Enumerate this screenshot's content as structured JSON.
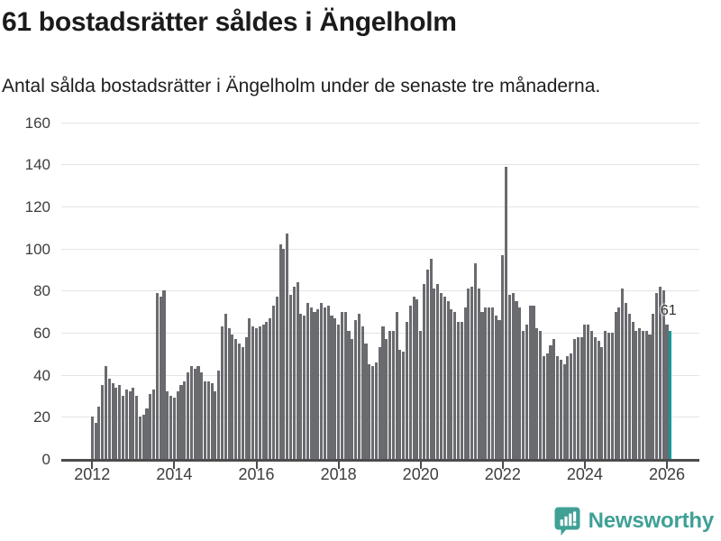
{
  "header": {
    "title": "61 bostadsrätter såldes i Ängelholm",
    "subtitle": "Antal sålda bostadsrätter i Ängelholm under de senaste tre månaderna."
  },
  "chart_data": {
    "type": "bar",
    "title": "61 bostadsrätter såldes i Ängelholm",
    "subtitle": "Antal sålda bostadsrätter i Ängelholm under de senaste tre månaderna.",
    "frequency": "monthly",
    "period_start": "2012-01",
    "period_end": "2026-02",
    "xlabel": "",
    "ylabel": "",
    "ylim": [
      0,
      160
    ],
    "yticks": [
      0,
      20,
      40,
      60,
      80,
      100,
      120,
      140,
      160
    ],
    "xticks": [
      2012,
      2014,
      2016,
      2018,
      2020,
      2022,
      2024,
      2026
    ],
    "grid": true,
    "values": [
      20,
      17,
      25,
      35,
      44,
      38,
      36,
      34,
      35,
      30,
      33,
      32,
      34,
      30,
      20,
      21,
      24,
      31,
      33,
      79,
      77,
      80,
      32,
      30,
      29,
      32,
      35,
      37,
      41,
      44,
      43,
      44,
      41,
      37,
      37,
      36,
      32,
      42,
      63,
      69,
      62,
      59,
      57,
      55,
      53,
      58,
      67,
      63,
      62,
      63,
      64,
      65,
      67,
      73,
      77,
      102,
      100,
      107,
      78,
      82,
      84,
      69,
      68,
      74,
      72,
      70,
      71,
      74,
      72,
      73,
      68,
      67,
      64,
      70,
      70,
      61,
      57,
      66,
      69,
      63,
      55,
      45,
      44,
      46,
      53,
      63,
      57,
      61,
      61,
      70,
      52,
      51,
      65,
      73,
      77,
      76,
      61,
      83,
      90,
      95,
      81,
      83,
      79,
      77,
      75,
      71,
      70,
      65,
      65,
      72,
      81,
      82,
      93,
      81,
      70,
      72,
      72,
      72,
      68,
      66,
      97,
      139,
      78,
      79,
      75,
      72,
      61,
      64,
      73,
      73,
      62,
      61,
      49,
      50,
      54,
      57,
      49,
      47,
      45,
      49,
      50,
      57,
      58,
      58,
      64,
      64,
      61,
      58,
      56,
      53,
      61,
      60,
      60,
      70,
      72,
      81,
      74,
      69,
      65,
      61,
      62,
      61,
      61,
      59,
      69,
      79,
      82,
      80,
      64,
      61
    ],
    "highlight_index": 169,
    "highlight_value": 61,
    "annotation": {
      "text": "61"
    },
    "colors": {
      "bar": "#6a6b6f",
      "highlight": "#18999b",
      "gridline": "#e4e4e4",
      "axis": "#4c4c4c"
    }
  },
  "footer": {
    "brand": "Newsworthy",
    "brand_color": "#3fa096",
    "logo_icon": "bar-chart-speech-bubble"
  }
}
